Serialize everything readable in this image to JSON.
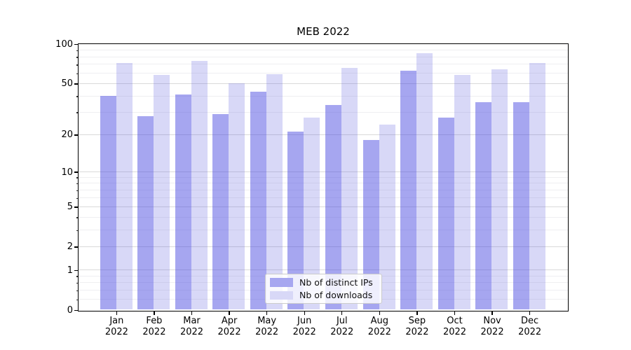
{
  "chart_data": {
    "type": "bar",
    "title": "MEB 2022",
    "months": [
      "Jan",
      "Feb",
      "Mar",
      "Apr",
      "May",
      "Jun",
      "Jul",
      "Aug",
      "Sep",
      "Oct",
      "Nov",
      "Dec"
    ],
    "year_line": "2022",
    "categories": [
      "Jan 2022",
      "Feb 2022",
      "Mar 2022",
      "Apr 2022",
      "May 2022",
      "Jun 2022",
      "Jul 2022",
      "Aug 2022",
      "Sep 2022",
      "Oct 2022",
      "Nov 2022",
      "Dec 2022"
    ],
    "series": [
      {
        "name": "Nb of distinct IPs",
        "color": "#a6a6f0",
        "values": [
          40,
          28,
          41,
          29,
          43,
          21,
          34,
          18,
          63,
          27,
          36,
          36
        ]
      },
      {
        "name": "Nb of downloads",
        "color": "#d8d8f7",
        "values": [
          72,
          58,
          74,
          50,
          59,
          27,
          66,
          24,
          85,
          58,
          64,
          72
        ]
      }
    ],
    "yscale": "log1p",
    "ylim": [
      0,
      100
    ],
    "yticks": [
      100,
      50,
      20,
      10,
      5,
      2,
      1,
      0
    ],
    "minor_yticks": [
      0.2,
      0.4,
      0.6,
      0.8,
      3,
      4,
      6,
      7,
      8,
      9,
      30,
      40,
      60,
      70,
      80,
      90
    ],
    "grid": true,
    "legend_position": "lower center"
  }
}
